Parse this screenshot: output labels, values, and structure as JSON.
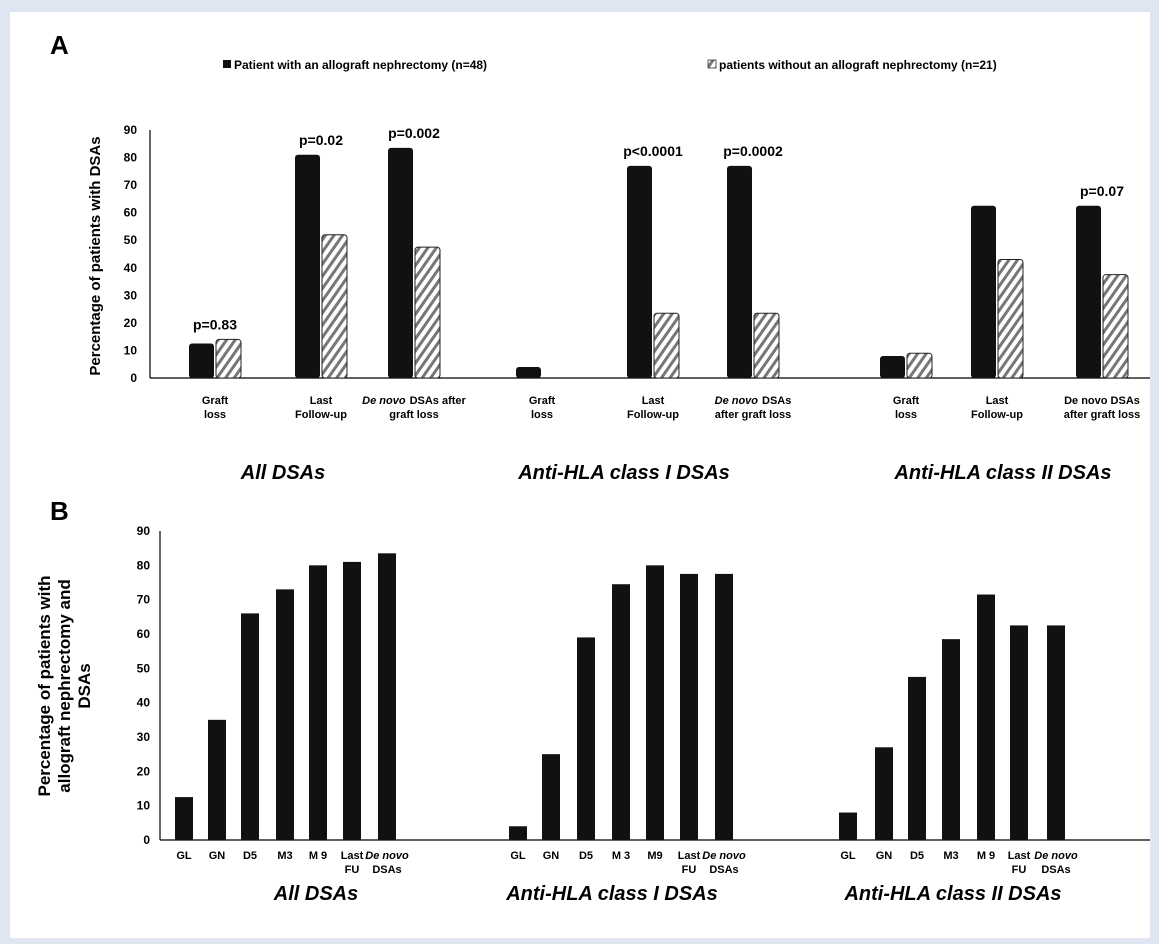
{
  "colors": {
    "page_border": "#dfe6f2",
    "bar_dark": "#111111",
    "bar_hatch": "#777777"
  },
  "chart_data": [
    {
      "panel": "A",
      "type": "bar",
      "legend": [
        "Patient with an allograft nephrectomy (n=48)",
        "patients without an allograft nephrectomy (n=21)"
      ],
      "ylabel": "Percentage of patients with DSAs",
      "ylim": [
        0,
        90
      ],
      "yticks": [
        0,
        10,
        20,
        30,
        40,
        50,
        60,
        70,
        80,
        90
      ],
      "groups": [
        {
          "title": "All DSAs",
          "categories": [
            {
              "lines": [
                "Graft",
                "loss"
              ],
              "italic_prefix": ""
            },
            {
              "lines": [
                "Last",
                "Follow-up"
              ],
              "italic_prefix": ""
            },
            {
              "lines": [
                "DSAs after",
                "graft loss"
              ],
              "italic_prefix": "De novo"
            }
          ],
          "series": [
            {
              "name": "Patient with an allograft nephrectomy (n=48)",
              "values": [
                12.5,
                81,
                83.5
              ]
            },
            {
              "name": "patients without an allograft nephrectomy (n=21)",
              "values": [
                14,
                52,
                47.5
              ]
            }
          ],
          "pvalues": [
            "p=0.83",
            "p=0.02",
            "p=0.002"
          ]
        },
        {
          "title": "Anti-HLA class I DSAs",
          "categories": [
            {
              "lines": [
                "Graft",
                "loss"
              ],
              "italic_prefix": ""
            },
            {
              "lines": [
                "Last",
                "Follow-up"
              ],
              "italic_prefix": ""
            },
            {
              "lines": [
                "DSAs",
                "after graft loss"
              ],
              "italic_prefix": "De novo"
            }
          ],
          "series": [
            {
              "name": "Patient with an allograft nephrectomy (n=48)",
              "values": [
                4,
                77,
                77
              ]
            },
            {
              "name": "patients without an allograft nephrectomy (n=21)",
              "values": [
                0,
                23.5,
                23.5
              ]
            }
          ],
          "pvalues": [
            "",
            "p<0.0001",
            "p=0.0002"
          ]
        },
        {
          "title": "Anti-HLA class II DSAs",
          "categories": [
            {
              "lines": [
                "Graft",
                "loss"
              ],
              "italic_prefix": ""
            },
            {
              "lines": [
                "Last",
                "Follow-up"
              ],
              "italic_prefix": ""
            },
            {
              "lines": [
                "De novo DSAs",
                "after graft loss"
              ],
              "italic_prefix": ""
            }
          ],
          "series": [
            {
              "name": "Patient with an allograft nephrectomy (n=48)",
              "values": [
                8,
                62.5,
                62.5
              ]
            },
            {
              "name": "patients without an allograft nephrectomy (n=21)",
              "values": [
                9,
                43,
                37.5
              ]
            }
          ],
          "pvalues": [
            "",
            "",
            "p=0.07"
          ]
        }
      ]
    },
    {
      "panel": "B",
      "type": "bar",
      "ylabel_lines": [
        "Percentage of patients with",
        "allograft nephrectomy and",
        "DSAs"
      ],
      "ylim": [
        0,
        90
      ],
      "yticks": [
        0,
        10,
        20,
        30,
        40,
        50,
        60,
        70,
        80,
        90
      ],
      "groups": [
        {
          "title": "All DSAs",
          "categories": [
            {
              "lines": [
                "GL"
              ],
              "italic": false
            },
            {
              "lines": [
                "GN"
              ],
              "italic": false
            },
            {
              "lines": [
                "D5"
              ],
              "italic": false
            },
            {
              "lines": [
                "M3"
              ],
              "italic": false
            },
            {
              "lines": [
                "M 9"
              ],
              "italic": false
            },
            {
              "lines": [
                "Last",
                "FU"
              ],
              "italic": false
            },
            {
              "lines": [
                "De novo",
                "DSAs"
              ],
              "italic": true,
              "italic_lines": 1
            }
          ],
          "values": [
            12.5,
            35,
            66,
            73,
            80,
            81,
            83.5
          ]
        },
        {
          "title": "Anti-HLA class I DSAs",
          "categories": [
            {
              "lines": [
                "GL"
              ],
              "italic": false
            },
            {
              "lines": [
                "GN"
              ],
              "italic": false
            },
            {
              "lines": [
                "D5"
              ],
              "italic": false
            },
            {
              "lines": [
                "M 3"
              ],
              "italic": false
            },
            {
              "lines": [
                "M9"
              ],
              "italic": false
            },
            {
              "lines": [
                "Last",
                "FU"
              ],
              "italic": false
            },
            {
              "lines": [
                "De novo",
                "DSAs"
              ],
              "italic": true,
              "italic_lines": 1
            }
          ],
          "values": [
            4,
            25,
            59,
            74.5,
            80,
            77.5,
            77.5
          ]
        },
        {
          "title": "Anti-HLA class II DSAs",
          "categories": [
            {
              "lines": [
                "GL"
              ],
              "italic": false
            },
            {
              "lines": [
                "GN"
              ],
              "italic": false
            },
            {
              "lines": [
                "D5"
              ],
              "italic": false
            },
            {
              "lines": [
                "M3"
              ],
              "italic": false
            },
            {
              "lines": [
                "M 9"
              ],
              "italic": false
            },
            {
              "lines": [
                "Last",
                "FU"
              ],
              "italic": false
            },
            {
              "lines": [
                "De novo",
                "DSAs"
              ],
              "italic": true,
              "italic_lines": 1
            }
          ],
          "values": [
            8,
            27,
            47.5,
            58.5,
            71.5,
            62.5,
            62.5
          ]
        }
      ]
    }
  ]
}
